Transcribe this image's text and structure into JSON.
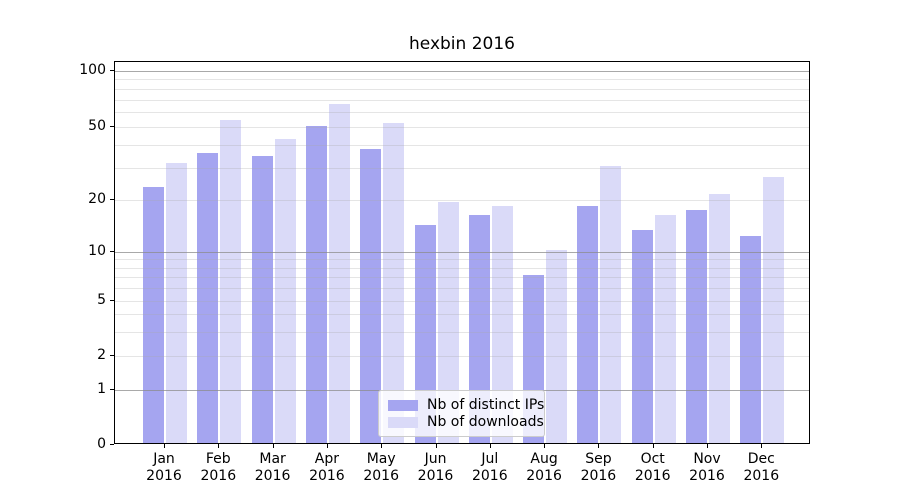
{
  "title": "hexbin 2016",
  "chart_data": {
    "type": "bar",
    "title": "hexbin 2016",
    "x_month_labels": [
      "Jan",
      "Feb",
      "Mar",
      "Apr",
      "May",
      "Jun",
      "Jul",
      "Aug",
      "Sep",
      "Oct",
      "Nov",
      "Dec"
    ],
    "x_year_label": "2016",
    "series": [
      {
        "name": "Nb of distinct IPs",
        "color": "#a5a5f0",
        "values": [
          23,
          35,
          34,
          49,
          37,
          14,
          16,
          7,
          18,
          13,
          17,
          12
        ]
      },
      {
        "name": "Nb of downloads",
        "color": "#dadaf8",
        "values": [
          31,
          53,
          42,
          65,
          51,
          19,
          18,
          10,
          30,
          16,
          21,
          26
        ]
      }
    ],
    "y_axis": {
      "scale": "symlog",
      "tick_values": [
        0,
        1,
        2,
        5,
        10,
        20,
        50,
        100
      ],
      "major_grid_values": [
        1,
        10,
        100
      ],
      "minor_grid_values": [
        2,
        3,
        4,
        5,
        6,
        7,
        8,
        9,
        20,
        30,
        40,
        50,
        60,
        70,
        80,
        90
      ]
    },
    "legend_position": "lower center",
    "grid": true
  },
  "legend": {
    "items": [
      {
        "label": "Nb of distinct IPs",
        "color": "#a5a5f0"
      },
      {
        "label": "Nb of downloads",
        "color": "#dadaf8"
      }
    ]
  },
  "colors": {
    "bar_ips": "#a5a5f0",
    "bar_downloads": "#dadaf8",
    "major_grid": "#8c8c8c",
    "minor_grid": "#e4e4e4",
    "axis": "#000000",
    "legend_border": "#cccccc",
    "background": "#ffffff"
  }
}
